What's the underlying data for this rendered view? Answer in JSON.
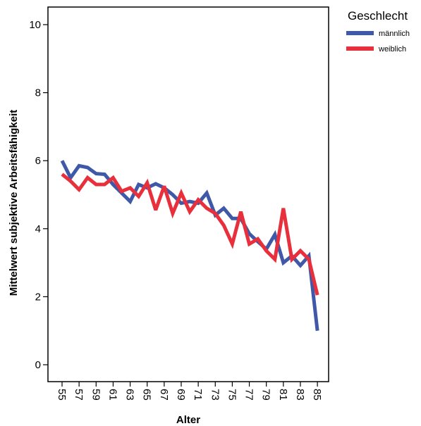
{
  "chart_data": {
    "type": "line",
    "xlabel": "Alter",
    "ylabel": "Mittelwert subjektive Arbeitsfähigkeit",
    "ylim": [
      0,
      10
    ],
    "yticks": [
      0,
      2,
      4,
      6,
      8,
      10
    ],
    "x": [
      55,
      56,
      57,
      58,
      59,
      60,
      61,
      62,
      63,
      64,
      65,
      66,
      67,
      68,
      69,
      70,
      71,
      72,
      73,
      74,
      75,
      76,
      77,
      78,
      79,
      80,
      81,
      82,
      83,
      84,
      85
    ],
    "xticks": [
      55,
      57,
      59,
      61,
      63,
      65,
      67,
      69,
      71,
      73,
      75,
      77,
      79,
      81,
      83,
      85
    ],
    "legend": {
      "title": "Geschlecht",
      "position": "top-right"
    },
    "grid": false,
    "series": [
      {
        "name": "männlich",
        "color": "#3f58a8",
        "values": [
          6.0,
          5.5,
          5.85,
          5.8,
          5.62,
          5.6,
          5.3,
          5.05,
          4.8,
          5.3,
          5.2,
          5.32,
          5.2,
          5.0,
          4.75,
          4.8,
          4.75,
          5.05,
          4.4,
          4.6,
          4.3,
          4.3,
          3.85,
          3.62,
          3.4,
          3.83,
          3.0,
          3.2,
          2.92,
          3.2,
          1.0
        ]
      },
      {
        "name": "weiblich",
        "color": "#e8303c",
        "values": [
          5.6,
          5.4,
          5.15,
          5.5,
          5.3,
          5.3,
          5.5,
          5.1,
          5.2,
          4.95,
          5.35,
          4.55,
          5.25,
          4.45,
          5.05,
          4.5,
          4.85,
          4.6,
          4.45,
          4.1,
          3.55,
          4.5,
          3.55,
          3.7,
          3.35,
          3.1,
          4.6,
          3.1,
          3.35,
          3.1,
          2.05
        ]
      }
    ]
  }
}
